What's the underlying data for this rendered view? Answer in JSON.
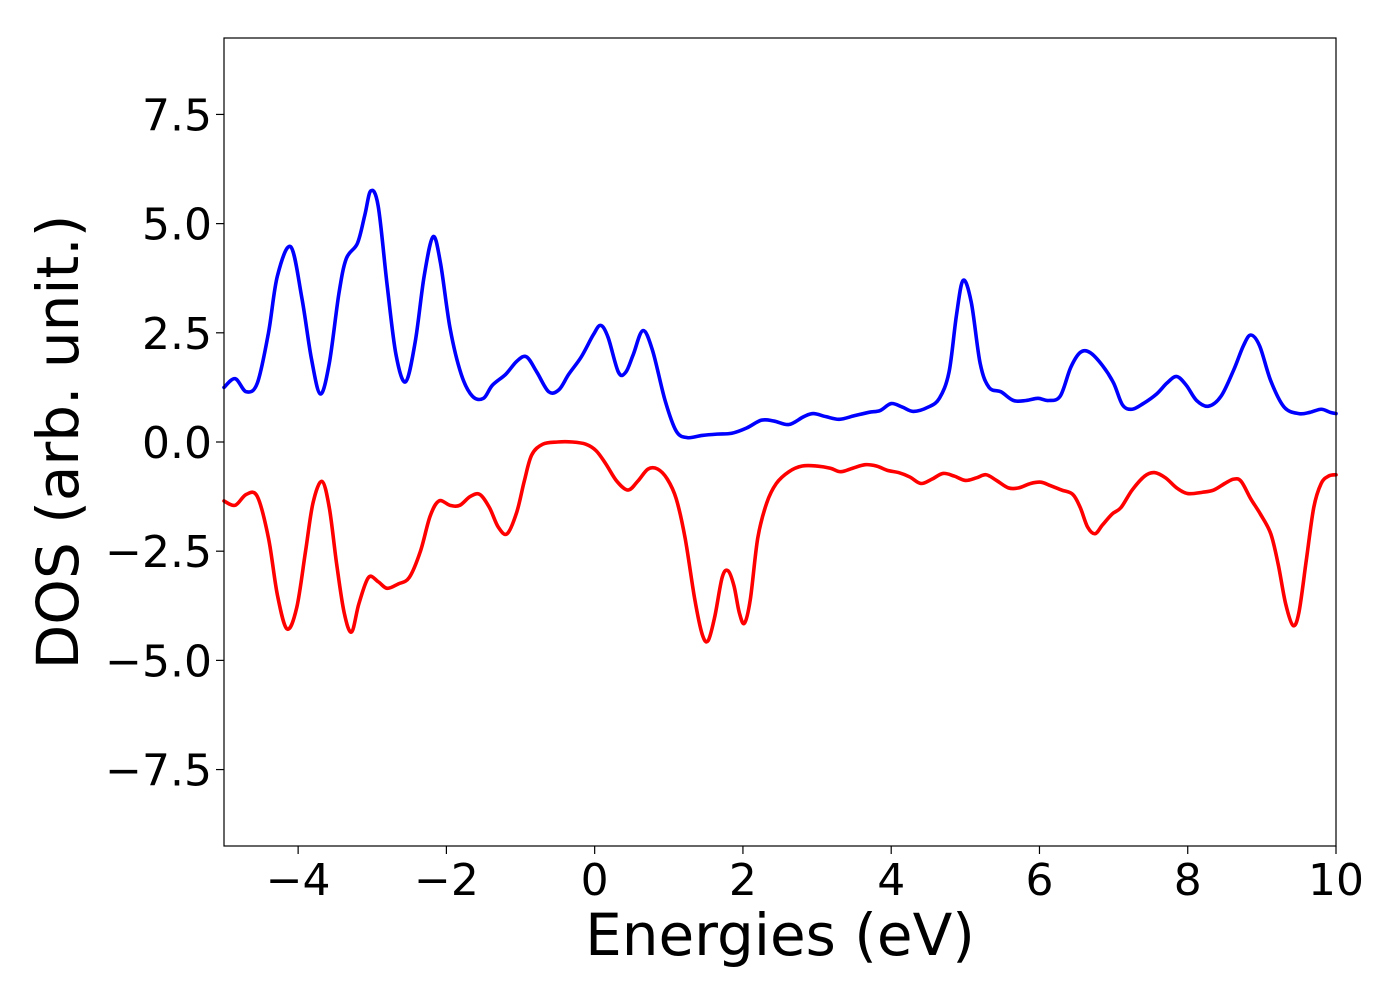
{
  "chart_data": {
    "type": "line",
    "title": "",
    "xlabel": "Energies (eV)",
    "ylabel": "DOS (arb. unit.)",
    "xlim": [
      -5,
      10
    ],
    "ylim": [
      -9.25,
      9.25
    ],
    "grid": false,
    "legend": "none",
    "x_ticks": [
      -4,
      -2,
      0,
      2,
      4,
      6,
      8,
      10
    ],
    "x_tick_labels": [
      "−4",
      "−2",
      "0",
      "2",
      "4",
      "6",
      "8",
      "10"
    ],
    "y_ticks": [
      -7.5,
      -5.0,
      -2.5,
      0.0,
      2.5,
      5.0,
      7.5
    ],
    "y_tick_labels": [
      "−7.5",
      "−5.0",
      "−2.5",
      "0.0",
      "2.5",
      "5.0",
      "7.5"
    ],
    "series": [
      {
        "color": "#0000ff",
        "points": [
          [
            -5.0,
            1.25
          ],
          [
            -4.85,
            1.45
          ],
          [
            -4.7,
            1.15
          ],
          [
            -4.55,
            1.35
          ],
          [
            -4.4,
            2.5
          ],
          [
            -4.28,
            3.8
          ],
          [
            -4.1,
            4.47
          ],
          [
            -3.95,
            3.3
          ],
          [
            -3.82,
            1.9
          ],
          [
            -3.7,
            1.1
          ],
          [
            -3.58,
            1.8
          ],
          [
            -3.45,
            3.4
          ],
          [
            -3.35,
            4.2
          ],
          [
            -3.2,
            4.55
          ],
          [
            -3.1,
            5.2
          ],
          [
            -3.02,
            5.75
          ],
          [
            -2.92,
            5.4
          ],
          [
            -2.8,
            3.6
          ],
          [
            -2.68,
            2.0
          ],
          [
            -2.55,
            1.38
          ],
          [
            -2.42,
            2.3
          ],
          [
            -2.3,
            3.8
          ],
          [
            -2.18,
            4.7
          ],
          [
            -2.08,
            4.1
          ],
          [
            -1.95,
            2.6
          ],
          [
            -1.8,
            1.55
          ],
          [
            -1.65,
            1.05
          ],
          [
            -1.5,
            1.0
          ],
          [
            -1.38,
            1.3
          ],
          [
            -1.2,
            1.55
          ],
          [
            -1.05,
            1.85
          ],
          [
            -0.92,
            1.95
          ],
          [
            -0.78,
            1.6
          ],
          [
            -0.62,
            1.15
          ],
          [
            -0.48,
            1.2
          ],
          [
            -0.35,
            1.55
          ],
          [
            -0.18,
            1.95
          ],
          [
            -0.02,
            2.45
          ],
          [
            0.08,
            2.67
          ],
          [
            0.18,
            2.4
          ],
          [
            0.32,
            1.6
          ],
          [
            0.42,
            1.6
          ],
          [
            0.52,
            2.0
          ],
          [
            0.65,
            2.55
          ],
          [
            0.78,
            2.1
          ],
          [
            0.95,
            0.95
          ],
          [
            1.1,
            0.25
          ],
          [
            1.25,
            0.1
          ],
          [
            1.45,
            0.15
          ],
          [
            1.65,
            0.18
          ],
          [
            1.85,
            0.2
          ],
          [
            2.05,
            0.32
          ],
          [
            2.25,
            0.5
          ],
          [
            2.42,
            0.48
          ],
          [
            2.62,
            0.4
          ],
          [
            2.82,
            0.58
          ],
          [
            2.95,
            0.65
          ],
          [
            3.12,
            0.58
          ],
          [
            3.3,
            0.52
          ],
          [
            3.5,
            0.6
          ],
          [
            3.7,
            0.68
          ],
          [
            3.85,
            0.72
          ],
          [
            4.0,
            0.88
          ],
          [
            4.15,
            0.8
          ],
          [
            4.3,
            0.7
          ],
          [
            4.5,
            0.8
          ],
          [
            4.65,
            1.0
          ],
          [
            4.78,
            1.6
          ],
          [
            4.88,
            2.9
          ],
          [
            4.97,
            3.7
          ],
          [
            5.08,
            3.2
          ],
          [
            5.2,
            1.8
          ],
          [
            5.32,
            1.25
          ],
          [
            5.48,
            1.15
          ],
          [
            5.65,
            0.95
          ],
          [
            5.82,
            0.95
          ],
          [
            5.98,
            1.0
          ],
          [
            6.12,
            0.95
          ],
          [
            6.28,
            1.05
          ],
          [
            6.42,
            1.7
          ],
          [
            6.55,
            2.05
          ],
          [
            6.68,
            2.05
          ],
          [
            6.85,
            1.75
          ],
          [
            7.0,
            1.35
          ],
          [
            7.12,
            0.85
          ],
          [
            7.25,
            0.75
          ],
          [
            7.4,
            0.88
          ],
          [
            7.58,
            1.1
          ],
          [
            7.72,
            1.35
          ],
          [
            7.85,
            1.5
          ],
          [
            7.98,
            1.3
          ],
          [
            8.12,
            0.95
          ],
          [
            8.28,
            0.82
          ],
          [
            8.45,
            1.05
          ],
          [
            8.62,
            1.65
          ],
          [
            8.75,
            2.2
          ],
          [
            8.85,
            2.45
          ],
          [
            8.97,
            2.2
          ],
          [
            9.12,
            1.4
          ],
          [
            9.3,
            0.8
          ],
          [
            9.5,
            0.65
          ],
          [
            9.65,
            0.68
          ],
          [
            9.8,
            0.75
          ],
          [
            9.92,
            0.68
          ],
          [
            10.0,
            0.65
          ]
        ]
      },
      {
        "color": "#ff0000",
        "points": [
          [
            -5.0,
            -1.35
          ],
          [
            -4.85,
            -1.45
          ],
          [
            -4.7,
            -1.2
          ],
          [
            -4.55,
            -1.25
          ],
          [
            -4.4,
            -2.2
          ],
          [
            -4.28,
            -3.5
          ],
          [
            -4.15,
            -4.28
          ],
          [
            -4.02,
            -3.8
          ],
          [
            -3.9,
            -2.5
          ],
          [
            -3.8,
            -1.4
          ],
          [
            -3.68,
            -0.9
          ],
          [
            -3.58,
            -1.5
          ],
          [
            -3.48,
            -2.8
          ],
          [
            -3.38,
            -3.9
          ],
          [
            -3.28,
            -4.35
          ],
          [
            -3.18,
            -3.7
          ],
          [
            -3.05,
            -3.1
          ],
          [
            -2.92,
            -3.2
          ],
          [
            -2.8,
            -3.35
          ],
          [
            -2.65,
            -3.25
          ],
          [
            -2.5,
            -3.1
          ],
          [
            -2.35,
            -2.5
          ],
          [
            -2.22,
            -1.7
          ],
          [
            -2.1,
            -1.35
          ],
          [
            -1.95,
            -1.45
          ],
          [
            -1.82,
            -1.45
          ],
          [
            -1.68,
            -1.25
          ],
          [
            -1.55,
            -1.2
          ],
          [
            -1.42,
            -1.5
          ],
          [
            -1.3,
            -1.95
          ],
          [
            -1.18,
            -2.1
          ],
          [
            -1.05,
            -1.6
          ],
          [
            -0.95,
            -0.9
          ],
          [
            -0.85,
            -0.3
          ],
          [
            -0.7,
            -0.05
          ],
          [
            -0.5,
            0.0
          ],
          [
            -0.3,
            0.0
          ],
          [
            -0.12,
            -0.05
          ],
          [
            0.02,
            -0.2
          ],
          [
            0.15,
            -0.5
          ],
          [
            0.3,
            -0.9
          ],
          [
            0.45,
            -1.1
          ],
          [
            0.58,
            -0.9
          ],
          [
            0.72,
            -0.62
          ],
          [
            0.85,
            -0.62
          ],
          [
            0.98,
            -0.85
          ],
          [
            1.1,
            -1.3
          ],
          [
            1.22,
            -2.2
          ],
          [
            1.35,
            -3.6
          ],
          [
            1.45,
            -4.4
          ],
          [
            1.53,
            -4.55
          ],
          [
            1.62,
            -4.0
          ],
          [
            1.72,
            -3.1
          ],
          [
            1.8,
            -2.95
          ],
          [
            1.88,
            -3.3
          ],
          [
            1.95,
            -3.9
          ],
          [
            2.02,
            -4.15
          ],
          [
            2.1,
            -3.6
          ],
          [
            2.2,
            -2.2
          ],
          [
            2.32,
            -1.4
          ],
          [
            2.45,
            -0.95
          ],
          [
            2.62,
            -0.68
          ],
          [
            2.8,
            -0.55
          ],
          [
            3.0,
            -0.55
          ],
          [
            3.18,
            -0.6
          ],
          [
            3.32,
            -0.68
          ],
          [
            3.48,
            -0.6
          ],
          [
            3.65,
            -0.52
          ],
          [
            3.8,
            -0.55
          ],
          [
            3.95,
            -0.65
          ],
          [
            4.1,
            -0.7
          ],
          [
            4.25,
            -0.8
          ],
          [
            4.4,
            -0.95
          ],
          [
            4.55,
            -0.85
          ],
          [
            4.7,
            -0.72
          ],
          [
            4.85,
            -0.78
          ],
          [
            5.0,
            -0.88
          ],
          [
            5.15,
            -0.82
          ],
          [
            5.28,
            -0.75
          ],
          [
            5.42,
            -0.88
          ],
          [
            5.58,
            -1.05
          ],
          [
            5.72,
            -1.05
          ],
          [
            5.88,
            -0.95
          ],
          [
            6.02,
            -0.92
          ],
          [
            6.15,
            -1.0
          ],
          [
            6.3,
            -1.1
          ],
          [
            6.45,
            -1.2
          ],
          [
            6.55,
            -1.5
          ],
          [
            6.65,
            -1.95
          ],
          [
            6.75,
            -2.1
          ],
          [
            6.85,
            -1.9
          ],
          [
            6.98,
            -1.65
          ],
          [
            7.1,
            -1.5
          ],
          [
            7.25,
            -1.1
          ],
          [
            7.42,
            -0.78
          ],
          [
            7.55,
            -0.7
          ],
          [
            7.7,
            -0.82
          ],
          [
            7.85,
            -1.05
          ],
          [
            8.0,
            -1.18
          ],
          [
            8.2,
            -1.15
          ],
          [
            8.35,
            -1.1
          ],
          [
            8.5,
            -0.95
          ],
          [
            8.62,
            -0.85
          ],
          [
            8.72,
            -0.9
          ],
          [
            8.85,
            -1.3
          ],
          [
            8.98,
            -1.65
          ],
          [
            9.12,
            -2.1
          ],
          [
            9.22,
            -2.8
          ],
          [
            9.32,
            -3.7
          ],
          [
            9.42,
            -4.2
          ],
          [
            9.5,
            -3.9
          ],
          [
            9.6,
            -2.7
          ],
          [
            9.7,
            -1.5
          ],
          [
            9.8,
            -0.95
          ],
          [
            9.9,
            -0.78
          ],
          [
            10.0,
            -0.75
          ]
        ]
      }
    ]
  }
}
